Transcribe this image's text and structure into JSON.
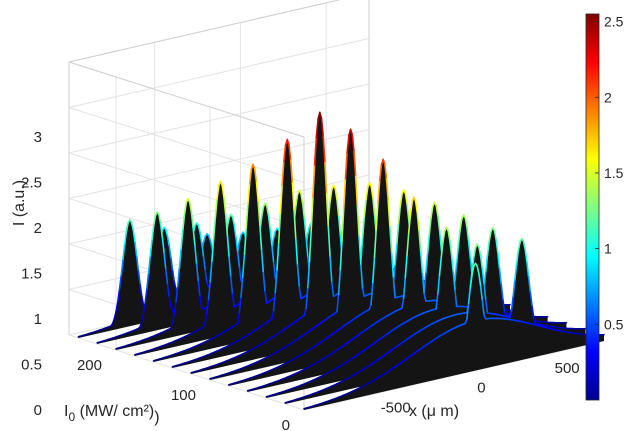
{
  "chart_data": {
    "type": "waterfall-3d",
    "title": "",
    "xlabel": "x (μ m)",
    "ylabel": "I_0 (MW/ cm²)",
    "zlabel": "I (a.u.)",
    "xlim": [
      -1000,
      750
    ],
    "ylim": [
      0,
      250
    ],
    "zlim": [
      0,
      3
    ],
    "x_ticks": [
      "-500",
      "0",
      "500"
    ],
    "y_ticks": [
      "0",
      "100",
      "200"
    ],
    "z_ticks": [
      "0",
      "0.5",
      "1",
      "1.5",
      "2",
      "2.5",
      "3"
    ],
    "grid": true,
    "colormap": "jet",
    "colorbar": {
      "range": [
        0,
        2.55
      ],
      "ticks": [
        "0.5",
        "1",
        "1.5",
        "2",
        "2.5"
      ]
    },
    "series_note_free": true,
    "intensities_I0": [
      0,
      20,
      40,
      60,
      80,
      100,
      120,
      140,
      160,
      180,
      200,
      220,
      240
    ],
    "series": [
      {
        "I0": 240,
        "peaks": [
          {
            "x": -700,
            "I": 1.17
          },
          {
            "x": -500,
            "I": 1.0
          },
          {
            "x": -250,
            "I": 0.82
          },
          {
            "x": 0,
            "I": 0.74
          },
          {
            "x": 250,
            "I": 0.65
          }
        ]
      },
      {
        "I0": 220,
        "peaks": [
          {
            "x": -650,
            "I": 1.3
          },
          {
            "x": -420,
            "I": 1.08
          },
          {
            "x": -150,
            "I": 0.86
          },
          {
            "x": 150,
            "I": 0.72
          }
        ]
      },
      {
        "I0": 200,
        "peaks": [
          {
            "x": -580,
            "I": 1.48
          },
          {
            "x": -330,
            "I": 1.2
          },
          {
            "x": -60,
            "I": 0.93
          },
          {
            "x": 230,
            "I": 0.75
          }
        ]
      },
      {
        "I0": 180,
        "peaks": [
          {
            "x": -500,
            "I": 1.7
          },
          {
            "x": -240,
            "I": 1.35
          },
          {
            "x": 30,
            "I": 1.02
          }
        ]
      },
      {
        "I0": 160,
        "peaks": [
          {
            "x": -420,
            "I": 1.92
          },
          {
            "x": -150,
            "I": 1.52
          },
          {
            "x": 120,
            "I": 1.08
          }
        ]
      },
      {
        "I0": 140,
        "peaks": [
          {
            "x": -330,
            "I": 2.22
          },
          {
            "x": -60,
            "I": 1.6
          },
          {
            "x": 210,
            "I": 1.06
          }
        ]
      },
      {
        "I0": 120,
        "peaks": [
          {
            "x": -250,
            "I": 2.55
          },
          {
            "x": 40,
            "I": 1.65
          },
          {
            "x": 290,
            "I": 1.0
          }
        ]
      },
      {
        "I0": 100,
        "peaks": [
          {
            "x": -180,
            "I": 2.4
          },
          {
            "x": 130,
            "I": 1.6
          }
        ]
      },
      {
        "I0": 80,
        "peaks": [
          {
            "x": -100,
            "I": 2.1
          },
          {
            "x": 200,
            "I": 1.5
          }
        ]
      },
      {
        "I0": 60,
        "peaks": [
          {
            "x": -30,
            "I": 1.72
          },
          {
            "x": 260,
            "I": 1.4
          }
        ]
      },
      {
        "I0": 40,
        "peaks": [
          {
            "x": 50,
            "I": 1.42
          },
          {
            "x": 320,
            "I": 1.3
          }
        ]
      },
      {
        "I0": 20,
        "peaks": [
          {
            "x": 120,
            "I": 1.27
          },
          {
            "x": 380,
            "I": 1.22
          }
        ]
      },
      {
        "I0": 0,
        "peaks": [
          {
            "x": 0,
            "I": 1.18
          }
        ]
      }
    ]
  }
}
